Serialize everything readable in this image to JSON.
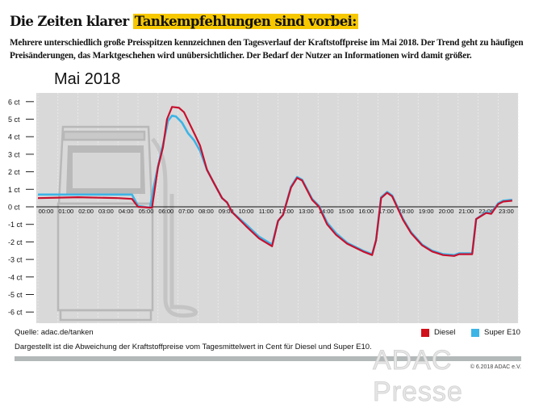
{
  "header": {
    "title_plain": "Die Zeiten klarer ",
    "title_highlight": "Tankempfehlungen sind vorbei:",
    "subtitle": "Mehrere unterschiedlich große Preisspitzen kennzeichnen den Tagesverlauf der Kraftstoffpreise im Mai 2018. Der Trend geht zu häufigen Preisänderungen, das Marktgeschehen wird unübersichtlicher. Der Bedarf der Nutzer an Informationen wird damit größer.",
    "highlight_color": "#f7c800"
  },
  "chart_data": {
    "type": "line",
    "title": "Mai 2018",
    "ylim": [
      -6,
      6
    ],
    "xlim": [
      0,
      24
    ],
    "y_ticks": [
      "6 ct",
      "5 ct",
      "4 ct",
      "3 ct",
      "2 ct",
      "1 ct",
      "0 ct",
      "-1 ct",
      "-2 ct",
      "-3 ct",
      "-4 ct",
      "-5 ct",
      "-6 ct"
    ],
    "x_ticks": [
      "00:00",
      "01:00",
      "02:00",
      "03:00",
      "04:00",
      "05:00",
      "06:00",
      "07:00",
      "08:00",
      "09:00",
      "10:00",
      "11:00",
      "12:00",
      "13:00",
      "14:00",
      "15:00",
      "16:00",
      "17:00",
      "18:00",
      "19:00",
      "20:00",
      "21:00",
      "22:00",
      "23:00"
    ],
    "grid": true,
    "legend": "bottom-right",
    "series": [
      {
        "name": "Super E10",
        "color": "#3db4e6",
        "points": [
          [
            0,
            0.7
          ],
          [
            2,
            0.7
          ],
          [
            4.7,
            0.7
          ],
          [
            5.0,
            0.05
          ],
          [
            5.6,
            -0.05
          ],
          [
            5.8,
            1.2
          ],
          [
            6.0,
            2.3
          ],
          [
            6.3,
            3.8
          ],
          [
            6.5,
            4.9
          ],
          [
            6.7,
            5.2
          ],
          [
            6.9,
            5.15
          ],
          [
            7.2,
            4.8
          ],
          [
            7.5,
            4.2
          ],
          [
            7.8,
            3.8
          ],
          [
            8.1,
            3.2
          ],
          [
            8.45,
            2.1
          ],
          [
            8.8,
            1.35
          ],
          [
            9.2,
            0.5
          ],
          [
            9.45,
            0.25
          ],
          [
            9.7,
            -0.3
          ],
          [
            10.4,
            -1.0
          ],
          [
            11.05,
            -1.7
          ],
          [
            11.7,
            -2.15
          ],
          [
            12.0,
            -0.8
          ],
          [
            12.25,
            -0.45
          ],
          [
            12.65,
            1.15
          ],
          [
            12.95,
            1.7
          ],
          [
            13.2,
            1.55
          ],
          [
            13.7,
            0.45
          ],
          [
            14.05,
            0.05
          ],
          [
            14.45,
            -0.9
          ],
          [
            14.9,
            -1.5
          ],
          [
            15.45,
            -2.05
          ],
          [
            16.25,
            -2.5
          ],
          [
            16.7,
            -2.7
          ],
          [
            16.9,
            -1.9
          ],
          [
            17.15,
            0.55
          ],
          [
            17.45,
            0.85
          ],
          [
            17.7,
            0.65
          ],
          [
            18.25,
            -0.7
          ],
          [
            18.65,
            -1.45
          ],
          [
            19.2,
            -2.15
          ],
          [
            19.7,
            -2.5
          ],
          [
            20.25,
            -2.7
          ],
          [
            20.8,
            -2.75
          ],
          [
            21.05,
            -2.65
          ],
          [
            21.7,
            -2.65
          ],
          [
            21.9,
            -0.7
          ],
          [
            22.4,
            -0.3
          ],
          [
            22.65,
            -0.35
          ],
          [
            23.0,
            0.2
          ],
          [
            23.25,
            0.35
          ],
          [
            23.7,
            0.4
          ]
        ]
      },
      {
        "name": "Diesel",
        "color": "#c8102e",
        "points": [
          [
            0,
            0.5
          ],
          [
            2,
            0.55
          ],
          [
            4.0,
            0.5
          ],
          [
            4.7,
            0.45
          ],
          [
            5.0,
            0
          ],
          [
            5.7,
            -0.05
          ],
          [
            6.0,
            2.26
          ],
          [
            6.25,
            3.4
          ],
          [
            6.45,
            5.0
          ],
          [
            6.7,
            5.7
          ],
          [
            7.05,
            5.65
          ],
          [
            7.3,
            5.4
          ],
          [
            7.85,
            4.1
          ],
          [
            8.1,
            3.5
          ],
          [
            8.45,
            2.1
          ],
          [
            8.8,
            1.35
          ],
          [
            9.2,
            0.5
          ],
          [
            9.45,
            0.25
          ],
          [
            9.7,
            -0.3
          ],
          [
            10.4,
            -1.1
          ],
          [
            11.05,
            -1.8
          ],
          [
            11.7,
            -2.25
          ],
          [
            12.0,
            -0.8
          ],
          [
            12.25,
            -0.45
          ],
          [
            12.65,
            1.1
          ],
          [
            12.95,
            1.65
          ],
          [
            13.2,
            1.5
          ],
          [
            13.7,
            0.4
          ],
          [
            14.05,
            0
          ],
          [
            14.45,
            -1.0
          ],
          [
            14.9,
            -1.6
          ],
          [
            15.45,
            -2.1
          ],
          [
            16.25,
            -2.55
          ],
          [
            16.7,
            -2.75
          ],
          [
            16.9,
            -1.9
          ],
          [
            17.15,
            0.5
          ],
          [
            17.45,
            0.8
          ],
          [
            17.7,
            0.6
          ],
          [
            18.25,
            -0.75
          ],
          [
            18.65,
            -1.5
          ],
          [
            19.2,
            -2.2
          ],
          [
            19.7,
            -2.55
          ],
          [
            20.25,
            -2.75
          ],
          [
            20.8,
            -2.8
          ],
          [
            21.05,
            -2.7
          ],
          [
            21.7,
            -2.7
          ],
          [
            21.9,
            -0.7
          ],
          [
            22.4,
            -0.35
          ],
          [
            22.65,
            -0.4
          ],
          [
            23.0,
            0.15
          ],
          [
            23.25,
            0.3
          ],
          [
            23.7,
            0.35
          ]
        ]
      }
    ]
  },
  "footer": {
    "source": "Quelle: adac.de/tanken",
    "note": "Dargestellt ist die Abweichung der Kraftstoffpreise vom Tagesmittelwert in Cent für Diesel und Super E10.",
    "legend_diesel": "Diesel",
    "legend_e10": "Super E10",
    "copyright": "© 6.2018 ADAC e.V.",
    "watermark": "ADAC Presse"
  }
}
